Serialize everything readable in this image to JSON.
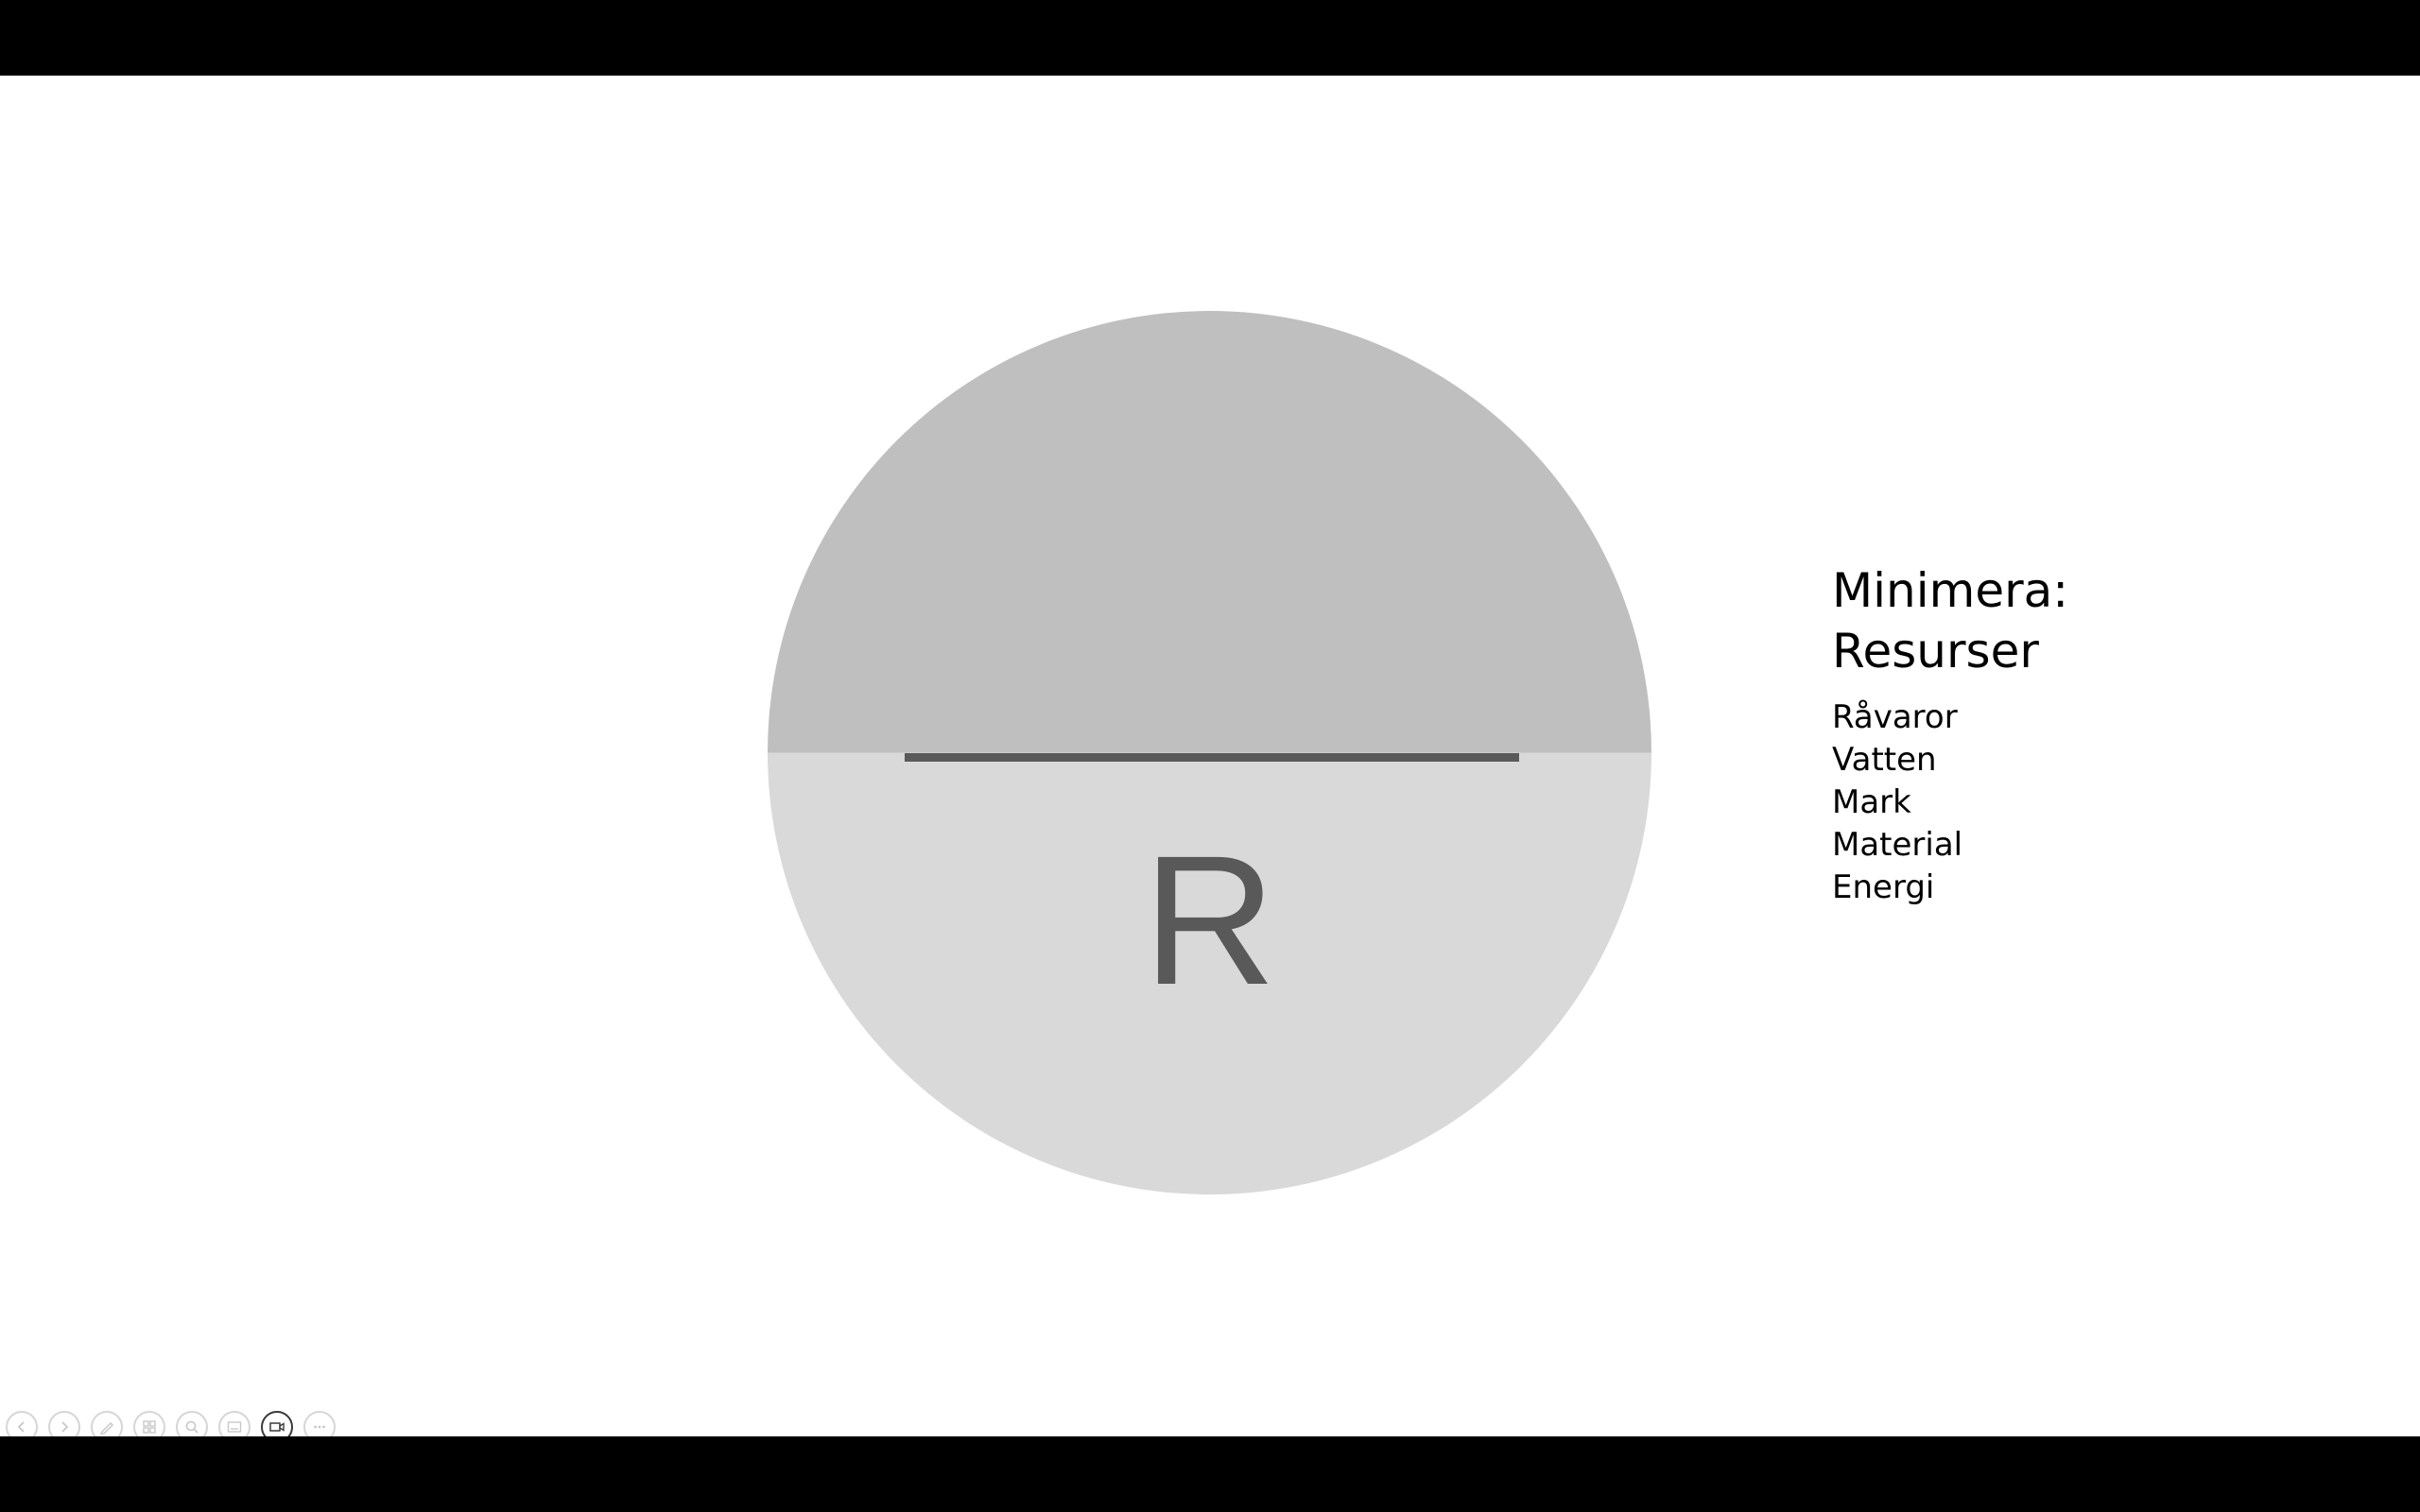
{
  "slide": {
    "diagram": {
      "letter": "R",
      "top_color": "#bfbfbf",
      "bottom_color": "#d9d9d9",
      "line_color": "#595959",
      "letter_color": "#595959"
    },
    "heading_line1": "Minimera:",
    "heading_line2": "Resurser",
    "items": [
      "Råvaror",
      "Vatten",
      "Mark",
      "Material",
      "Energi"
    ]
  },
  "controls": [
    {
      "icon": "previous-icon"
    },
    {
      "icon": "next-icon"
    },
    {
      "icon": "pen-icon"
    },
    {
      "icon": "slides-icon"
    },
    {
      "icon": "zoom-icon"
    },
    {
      "icon": "subtitles-icon"
    },
    {
      "icon": "camera-icon",
      "active": true
    },
    {
      "icon": "more-icon"
    }
  ]
}
